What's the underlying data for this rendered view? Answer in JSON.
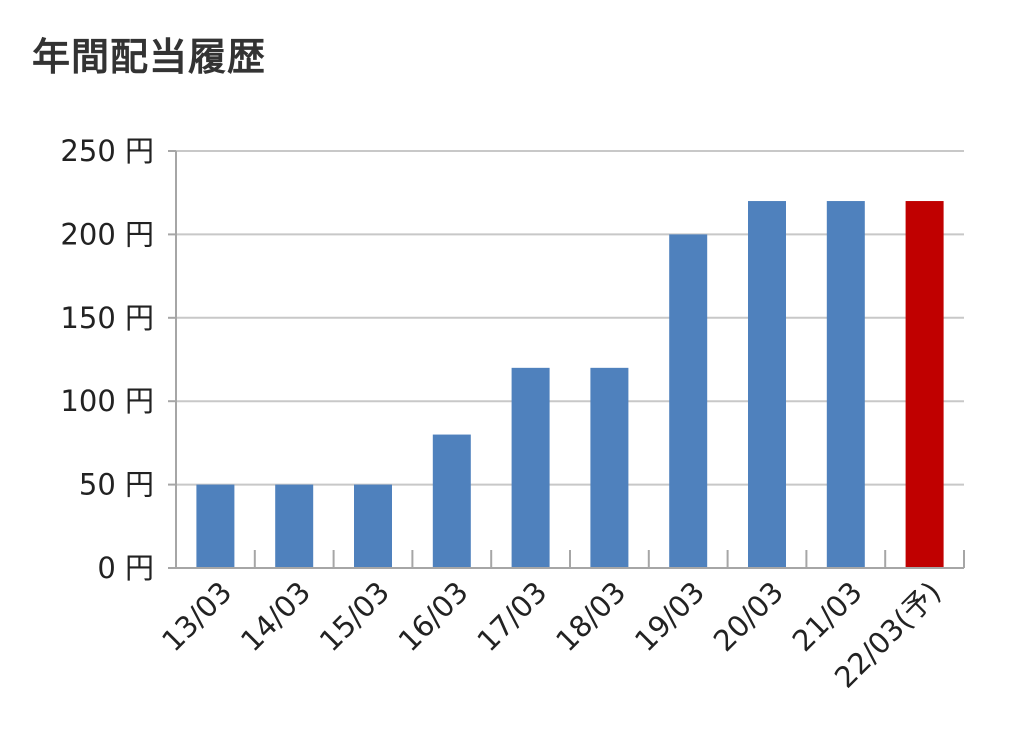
{
  "chart_data": {
    "type": "bar",
    "title": "年間配当履歴",
    "xlabel": "",
    "ylabel": "",
    "categories": [
      "13/03",
      "14/03",
      "15/03",
      "16/03",
      "17/03",
      "18/03",
      "19/03",
      "20/03",
      "21/03",
      "22/03(予)"
    ],
    "values": [
      50,
      50,
      50,
      80,
      120,
      120,
      200,
      220,
      220,
      220
    ],
    "ylim": [
      0,
      250
    ],
    "yticks": [
      0,
      50,
      100,
      150,
      200,
      250
    ],
    "ytick_labels": [
      "0 円",
      "50 円",
      "100 円",
      "150 円",
      "200 円",
      "250 円"
    ],
    "grid": true,
    "legend": "none",
    "colors": {
      "actual": "#4f81bd",
      "forecast": "#c00000",
      "grid": "#c8c8c8",
      "axis": "#a6a6a6"
    },
    "highlight_index": 9
  }
}
